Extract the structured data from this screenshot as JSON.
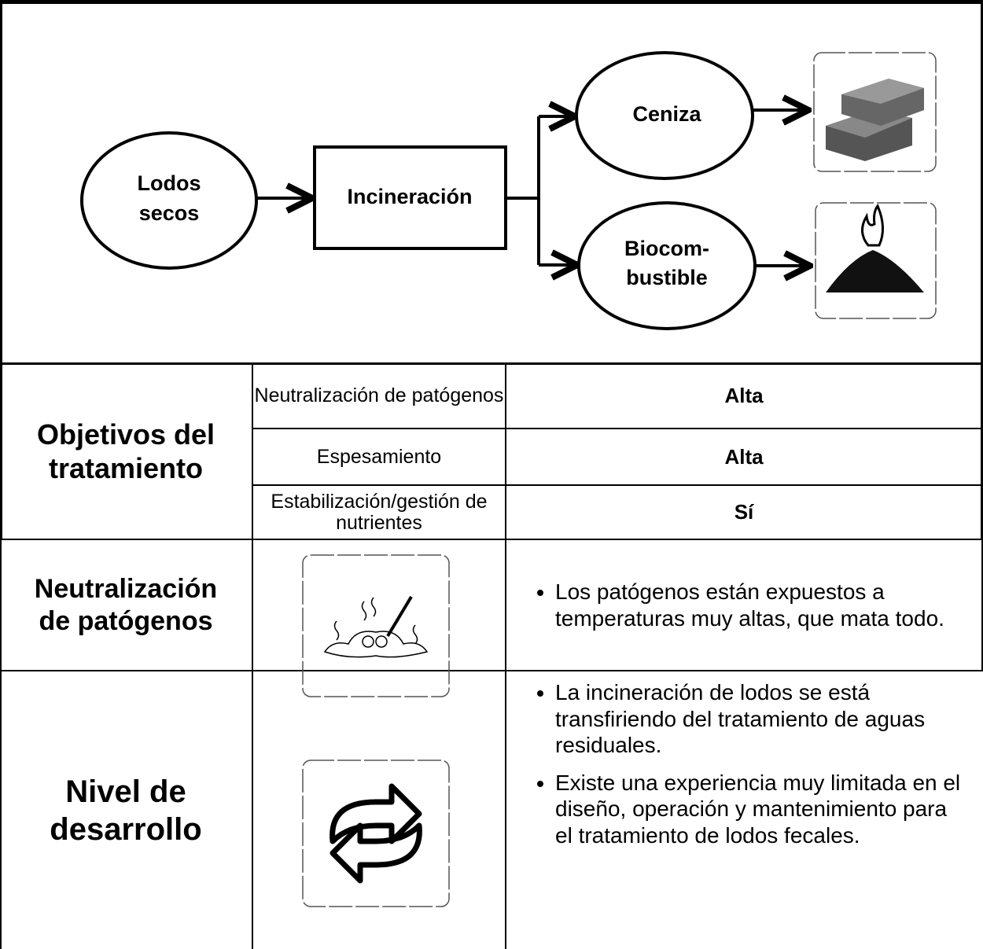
{
  "diagram": {
    "nodes": [
      {
        "label_lines": [
          "Lodos",
          "secos"
        ]
      },
      {
        "label_lines": [
          "Incineración"
        ]
      },
      {
        "label_lines": [
          "Ceniza"
        ]
      },
      {
        "label_lines": [
          "Biocom-",
          "bustible"
        ]
      }
    ]
  },
  "table": {
    "objectives": {
      "title": "Objetivos del tratamiento",
      "rows": [
        [
          "Neutralización de patógenos",
          "Alta"
        ],
        [
          "Espesamiento",
          "Alta"
        ],
        [
          "Estabilización/gestión de nutrientes",
          "Sí"
        ]
      ]
    },
    "pathogens": {
      "title": "Neutralización de patógenos",
      "bullets": [
        "Los patógenos están expuestos a temperaturas muy altas, que mata todo."
      ]
    },
    "development": {
      "title": "Nivel de desarrollo",
      "bullets": [
        "La incineración de lodos se está transfiriendo del tratamiento de aguas residuales.",
        "Existe una experiencia muy limitada en el diseño, operación y mantenimiento para el tratamiento de lodos fecales."
      ]
    }
  }
}
